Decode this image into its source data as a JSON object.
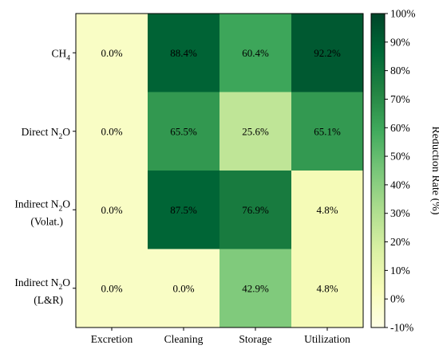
{
  "chart_data": {
    "type": "heatmap",
    "categories": [
      "Excretion",
      "Cleaning",
      "Storage",
      "Utilization"
    ],
    "rows": [
      {
        "pre": "CH",
        "sub": "4",
        "post": "",
        "line2": ""
      },
      {
        "pre": "Direct N",
        "sub": "2",
        "post": "O",
        "line2": ""
      },
      {
        "pre": "Indirect N",
        "sub": "2",
        "post": "O",
        "line2": "(Volat.)"
      },
      {
        "pre": "Indirect N",
        "sub": "2",
        "post": "O",
        "line2": "(L&R)"
      }
    ],
    "values": [
      [
        0.0,
        88.4,
        60.4,
        92.2
      ],
      [
        0.0,
        65.5,
        25.6,
        65.1
      ],
      [
        0.0,
        87.5,
        76.9,
        4.8
      ],
      [
        0.0,
        0.0,
        42.9,
        4.8
      ]
    ],
    "cell_labels": [
      [
        "0.0%",
        "88.4%",
        "60.4%",
        "92.2%"
      ],
      [
        "0.0%",
        "65.5%",
        "25.6%",
        "65.1%"
      ],
      [
        "0.0%",
        "87.5%",
        "76.9%",
        "4.8%"
      ],
      [
        "0.0%",
        "0.0%",
        "42.9%",
        "4.8%"
      ]
    ],
    "colorbar": {
      "label": "Reduction Rate (%)",
      "min": -10,
      "max": 100,
      "ticks": [
        -10,
        0,
        10,
        20,
        30,
        40,
        50,
        60,
        70,
        80,
        90,
        100
      ],
      "tick_labels": [
        "-10%",
        "0%",
        "10%",
        "20%",
        "30%",
        "40%",
        "50%",
        "60%",
        "70%",
        "80%",
        "90%",
        "100%"
      ],
      "colormap": "YlGn",
      "colormap_stops": [
        "#ffffe5",
        "#f7fcb9",
        "#d9f0a3",
        "#addd8e",
        "#78c679",
        "#41ab5d",
        "#238443",
        "#006837",
        "#004529"
      ]
    }
  }
}
